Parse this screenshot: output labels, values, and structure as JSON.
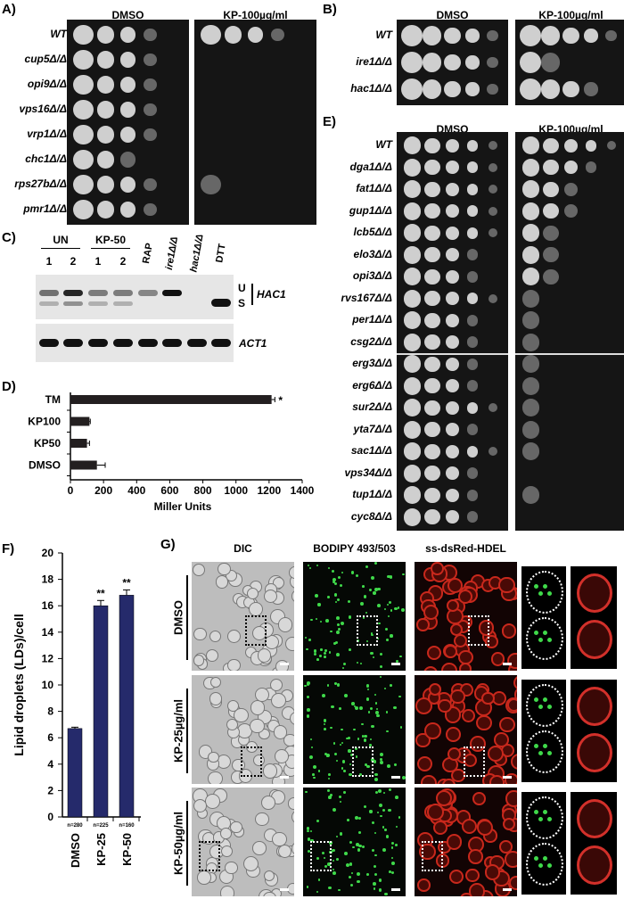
{
  "panelA": {
    "label": "A)",
    "headers": [
      "DMSO",
      "KP-100µg/ml"
    ],
    "strains": [
      "WT",
      "cup5Δ/Δ",
      "opi9Δ/Δ",
      "vps16Δ/Δ",
      "vrp1Δ/Δ",
      "chc1Δ/Δ",
      "rps27bΔ/Δ",
      "pmr1Δ/Δ"
    ],
    "dmso_growth": [
      4,
      4,
      4,
      4,
      4,
      3,
      4,
      4
    ],
    "kp_growth": [
      4,
      0,
      0,
      0,
      0,
      0,
      1,
      0
    ]
  },
  "panelB": {
    "label": "B)",
    "headers": [
      "DMSO",
      "KP-100µg/ml"
    ],
    "strains": [
      "WT",
      "ire1Δ/Δ",
      "hac1Δ/Δ"
    ],
    "dmso_growth": [
      5,
      5,
      5
    ],
    "kp_growth": [
      5,
      2,
      4
    ]
  },
  "panelE": {
    "label": "E)",
    "headers": [
      "DMSO",
      "KP-100µg/ml"
    ],
    "strains": [
      "WT",
      "dga1Δ/Δ",
      "fat1Δ/Δ",
      "gup1Δ/Δ",
      "lcb5Δ/Δ",
      "elo3Δ/Δ",
      "opi3Δ/Δ",
      "rvs167Δ/Δ",
      "per1Δ/Δ",
      "csg2Δ/Δ",
      "erg3Δ/Δ",
      "erg6Δ/Δ",
      "sur2Δ/Δ",
      "yta7Δ/Δ",
      "sac1Δ/Δ",
      "vps34Δ/Δ",
      "tup1Δ/Δ",
      "cyc8Δ/Δ"
    ],
    "dmso_growth": [
      5,
      5,
      5,
      5,
      5,
      4,
      4,
      5,
      4,
      4,
      4,
      4,
      5,
      4,
      5,
      4,
      4,
      4
    ],
    "kp_growth": [
      5,
      4,
      3,
      3,
      2,
      2,
      2,
      1,
      1,
      1,
      1,
      1,
      1,
      1,
      1,
      0,
      1,
      0
    ]
  },
  "panelC": {
    "label": "C)",
    "groups": [
      "UN",
      "KP-50"
    ],
    "lane_numbers": [
      "1",
      "2",
      "1",
      "2"
    ],
    "lane_labels": [
      "RAP",
      "ire1Δ/Δ",
      "hac1Δ/Δ",
      "DTT"
    ],
    "band_labels": [
      "U",
      "S"
    ],
    "gene_hac1": "HAC1",
    "gene_act1": "ACT1",
    "hac1_U": [
      0.55,
      0.9,
      0.5,
      0.5,
      0.45,
      1.0,
      0,
      0
    ],
    "hac1_S": [
      0.25,
      0.4,
      0.25,
      0.25,
      0,
      0,
      0,
      1.0
    ]
  },
  "chart_data": [
    {
      "type": "bar",
      "orientation": "horizontal",
      "panel": "D)",
      "categories": [
        "TM",
        "KP100",
        "KP50",
        "DMSO"
      ],
      "values": [
        1215,
        115,
        100,
        160
      ],
      "errors": [
        20,
        5,
        15,
        50
      ],
      "annotations": [
        "*",
        "",
        "",
        ""
      ],
      "xlabel": "Miller Units",
      "xlim": [
        0,
        1400
      ],
      "xticks": [
        0,
        200,
        400,
        600,
        800,
        1000,
        1200,
        1400
      ],
      "color": "#231f20"
    },
    {
      "type": "bar",
      "panel": "F)",
      "categories": [
        "DMSO",
        "KP-25",
        "KP-50"
      ],
      "values": [
        6.7,
        16.0,
        16.8
      ],
      "errors": [
        0.1,
        0.4,
        0.4
      ],
      "annotations": [
        "",
        "**",
        "**"
      ],
      "n_labels": [
        "n=280",
        "n=225",
        "n=160"
      ],
      "ylabel": "Lipid droplets (LDs)/cell",
      "ylim": [
        0,
        20
      ],
      "yticks": [
        0,
        2,
        4,
        6,
        8,
        10,
        12,
        14,
        16,
        18,
        20
      ],
      "color": "#252a6b"
    }
  ],
  "panelG": {
    "label": "G)",
    "columns": [
      "DIC",
      "BODIPY 493/503",
      "ss-dsRed-HDEL"
    ],
    "rows": [
      "DMSO",
      "KP-25µg/ml",
      "KP-50µg/ml"
    ]
  }
}
